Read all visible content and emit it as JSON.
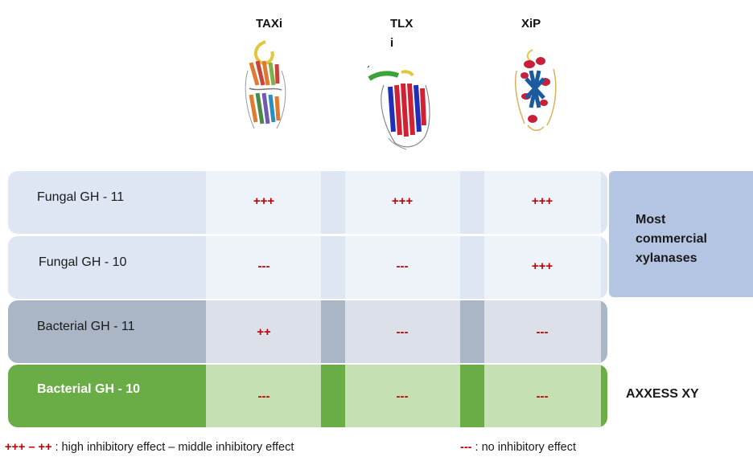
{
  "columns": [
    {
      "name": "TAXi",
      "icon": "taxi-protein-structure-icon"
    },
    {
      "name_line1": "TLX",
      "name_line2": "i",
      "icon": "tlxi-protein-structure-icon"
    },
    {
      "name": "XiP",
      "icon": "xip-protein-structure-icon"
    }
  ],
  "rows": [
    {
      "label": "Fungal GH - 11",
      "values": [
        "+++",
        "+++",
        "+++"
      ],
      "color": "#dfe6f3"
    },
    {
      "label": "Fungal GH - 10",
      "values": [
        "---",
        "---",
        "+++"
      ],
      "color": "#dfe6f3"
    },
    {
      "label": "Bacterial GH - 11",
      "values": [
        "++",
        "---",
        "---"
      ],
      "color": "#aab5c6"
    },
    {
      "label": "Bacterial GH - 10",
      "values": [
        "---",
        "---",
        "---"
      ],
      "color": "#6aad47"
    }
  ],
  "side_labels": {
    "most_commercial_line1": "Most",
    "most_commercial_line2": "commercial",
    "most_commercial_line3": "xylanases",
    "axxess": "AXXESS XY"
  },
  "legend": {
    "high_symbol": "+++",
    "dash": " – ",
    "middle_symbol": "++",
    "high_text": " : high inhibitory effect – middle inhibitory effect",
    "none_symbol": "---",
    "none_text": " : no inhibitory effect"
  },
  "colors": {
    "inhibition_red": "#c00000",
    "fungal_row": "#dfe6f3",
    "fungal_cell": "#eef2f9",
    "bacterial11_row": "#aab5c6",
    "bacterial11_cell": "#dce1e9",
    "bacterial10_row": "#6aad47",
    "bacterial10_cell": "#c5e0b3",
    "side_box": "#b4c5e3"
  }
}
